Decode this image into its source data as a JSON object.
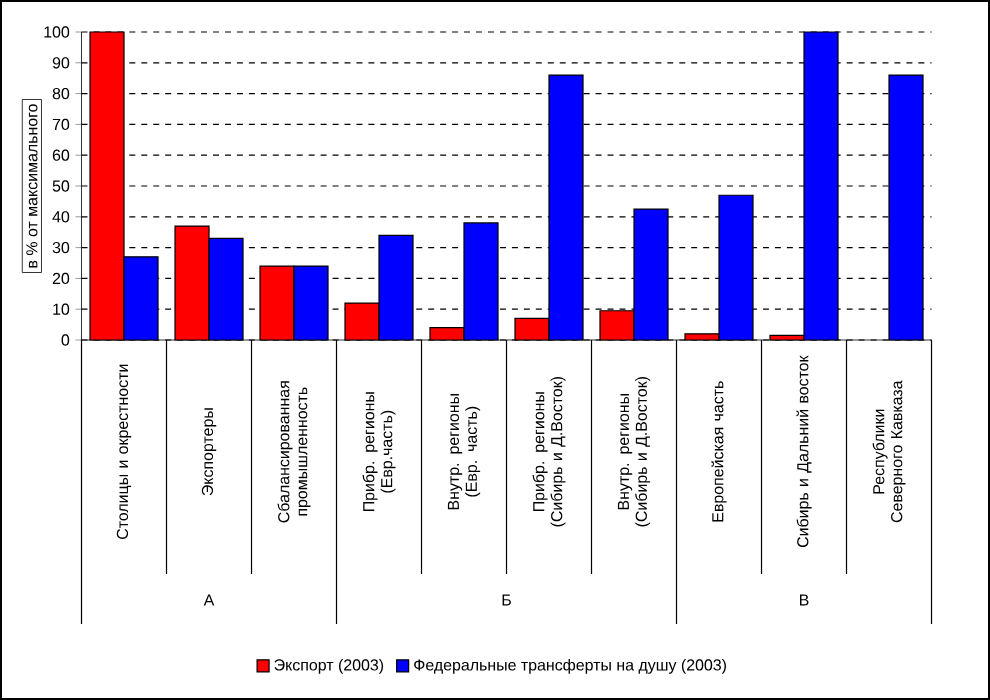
{
  "chart_data": {
    "type": "bar",
    "ylabel": "в % от максимального",
    "categories": [
      "Столицы и окрестности",
      "Экспортеры",
      "Сбалансированная промышленность",
      "Прибр. регионы (Евр.часть)",
      "Внутр. регионы (Евр. часть)",
      "Прибр. регионы (Сибирь и Д.Восток)",
      "Внутр. регионы (Сибирь и Д.Восток)",
      "Европейская часть",
      "Сибирь и Дальний восток",
      "Республики Северного Кавказа"
    ],
    "series": [
      {
        "name": "Экспорт (2003)",
        "color": "#ff0000",
        "values": [
          100,
          37,
          24,
          12,
          4,
          7,
          9.5,
          2,
          1.5,
          null
        ]
      },
      {
        "name": "Федеральные трансферты на душу (2003)",
        "color": "#0000ff",
        "values": [
          27,
          33,
          24,
          34,
          38,
          86,
          42.5,
          47,
          100,
          86
        ]
      }
    ],
    "ylim": [
      0,
      100
    ],
    "yticks": [
      0,
      10,
      20,
      30,
      40,
      50,
      60,
      70,
      80,
      90,
      100
    ],
    "grid": "y",
    "legend": "bottom",
    "annotations": [
      "А",
      "Б",
      "В"
    ]
  }
}
